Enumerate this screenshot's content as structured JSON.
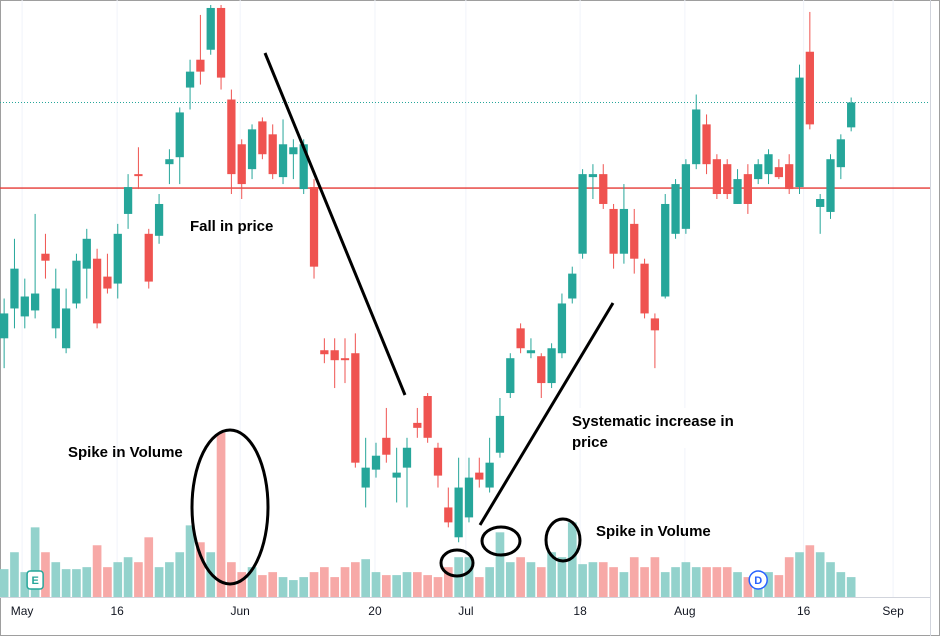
{
  "chart_data": {
    "type": "candlestick",
    "up_color": "#26a69a",
    "down_color": "#ef5350",
    "up_volume_color": "#93d2cc",
    "down_volume_color": "#f7a9a7",
    "x": [
      0,
      1,
      2,
      3,
      4,
      5,
      6,
      7,
      8,
      9,
      10,
      11,
      12,
      13,
      14,
      15,
      16,
      17,
      18,
      19,
      20,
      21,
      22,
      23,
      24,
      25,
      26,
      27,
      28,
      29,
      30,
      31,
      32,
      33,
      34,
      35,
      36,
      37,
      38,
      39,
      40,
      41,
      42,
      43,
      44,
      45,
      46,
      47,
      48,
      49,
      50,
      51,
      52,
      53,
      54,
      55,
      56,
      57,
      58,
      59,
      60,
      61,
      62,
      63,
      64,
      65,
      66,
      67,
      68,
      69,
      70,
      71,
      72,
      73,
      74,
      75,
      76,
      77,
      78,
      79,
      80,
      81,
      82
    ],
    "open": [
      260,
      290,
      282,
      288,
      345,
      270,
      250,
      295,
      330,
      340,
      322,
      315,
      385,
      425,
      365,
      363,
      435,
      442,
      512,
      540,
      550,
      592,
      500,
      455,
      430,
      478,
      465,
      422,
      445,
      410,
      412,
      248,
      248,
      240,
      245,
      110,
      128,
      160,
      120,
      130,
      175,
      202,
      150,
      90,
      60,
      80,
      125,
      110,
      145,
      205,
      270,
      245,
      242,
      215,
      245,
      300,
      345,
      422,
      425,
      390,
      345,
      375,
      335,
      280,
      302,
      365,
      370,
      435,
      475,
      440,
      435,
      395,
      425,
      420,
      425,
      432,
      435,
      412,
      548,
      392,
      387,
      432,
      472
    ],
    "high": [
      300,
      360,
      320,
      385,
      365,
      330,
      310,
      345,
      370,
      350,
      345,
      375,
      425,
      452,
      370,
      405,
      450,
      492,
      540,
      585,
      595,
      595,
      510,
      460,
      475,
      482,
      475,
      480,
      460,
      460,
      420,
      260,
      260,
      260,
      265,
      160,
      155,
      190,
      150,
      160,
      190,
      205,
      155,
      110,
      140,
      140,
      140,
      160,
      200,
      245,
      275,
      260,
      245,
      255,
      305,
      332,
      430,
      435,
      435,
      395,
      415,
      390,
      340,
      285,
      405,
      420,
      440,
      505,
      485,
      445,
      440,
      430,
      435,
      440,
      450,
      440,
      445,
      535,
      588,
      405,
      445,
      465,
      502
    ],
    "low": [
      230,
      270,
      270,
      280,
      320,
      260,
      245,
      290,
      300,
      270,
      305,
      300,
      370,
      410,
      310,
      355,
      415,
      415,
      490,
      515,
      545,
      510,
      405,
      400,
      420,
      440,
      420,
      415,
      420,
      405,
      320,
      235,
      210,
      215,
      130,
      90,
      120,
      135,
      95,
      90,
      160,
      155,
      110,
      70,
      55,
      75,
      110,
      105,
      140,
      200,
      245,
      240,
      200,
      210,
      240,
      295,
      340,
      400,
      390,
      330,
      335,
      325,
      280,
      230,
      300,
      360,
      365,
      430,
      425,
      400,
      400,
      395,
      385,
      415,
      415,
      420,
      405,
      405,
      470,
      365,
      380,
      420,
      468
    ],
    "close": [
      285,
      330,
      302,
      305,
      338,
      310,
      290,
      338,
      360,
      275,
      310,
      365,
      412,
      423,
      317,
      395,
      440,
      487,
      528,
      528,
      592,
      522,
      425,
      415,
      470,
      445,
      425,
      455,
      452,
      455,
      332,
      244,
      238,
      238,
      135,
      130,
      142,
      143,
      125,
      150,
      170,
      160,
      122,
      75,
      110,
      120,
      118,
      135,
      182,
      240,
      250,
      248,
      215,
      250,
      295,
      325,
      425,
      425,
      395,
      345,
      390,
      340,
      285,
      268,
      395,
      415,
      435,
      490,
      435,
      405,
      405,
      420,
      395,
      435,
      445,
      422,
      410,
      522,
      475,
      400,
      440,
      460,
      497
    ],
    "volume": [
      28,
      45,
      25,
      70,
      45,
      35,
      28,
      28,
      30,
      52,
      30,
      35,
      40,
      35,
      60,
      30,
      35,
      45,
      72,
      55,
      45,
      165,
      35,
      25,
      30,
      22,
      25,
      20,
      17,
      20,
      25,
      30,
      20,
      30,
      35,
      38,
      25,
      22,
      22,
      25,
      25,
      22,
      20,
      30,
      40,
      40,
      20,
      30,
      65,
      35,
      40,
      35,
      30,
      45,
      40,
      75,
      33,
      35,
      35,
      30,
      25,
      40,
      30,
      40,
      25,
      30,
      35,
      30,
      30,
      30,
      30,
      25,
      20,
      25,
      25,
      22,
      40,
      45,
      52,
      45,
      35,
      25,
      20
    ],
    "xlim": [
      -0.4,
      90.6
    ],
    "ylim": [
      0,
      600
    ],
    "volume_lim": [
      0,
      600
    ],
    "xticks": [
      {
        "value": 1.74,
        "label": "May"
      },
      {
        "value": 10.94,
        "label": "16"
      },
      {
        "value": 22.85,
        "label": "Jun"
      },
      {
        "value": 35.9,
        "label": "20"
      },
      {
        "value": 44.7,
        "label": "Jul"
      },
      {
        "value": 55.76,
        "label": "18"
      },
      {
        "value": 65.9,
        "label": "Aug"
      },
      {
        "value": 77.4,
        "label": "16"
      },
      {
        "value": 86.06,
        "label": "Sep"
      }
    ],
    "hlines": [
      {
        "value": 411,
        "color": "#e53935",
        "style": "solid"
      },
      {
        "value": 497,
        "color": "#26a69a",
        "style": "dotted"
      }
    ],
    "events": [
      {
        "x": 3,
        "label": "E",
        "color": "#26a69a"
      },
      {
        "x": 73,
        "label": "D",
        "color": "#2962ff"
      }
    ],
    "annotations": {
      "fall": "Fall in price",
      "spike_left": "Spike in Volume",
      "increase": [
        "Systematic increase in",
        "price"
      ],
      "spike_right": "Spike in Volume"
    }
  }
}
